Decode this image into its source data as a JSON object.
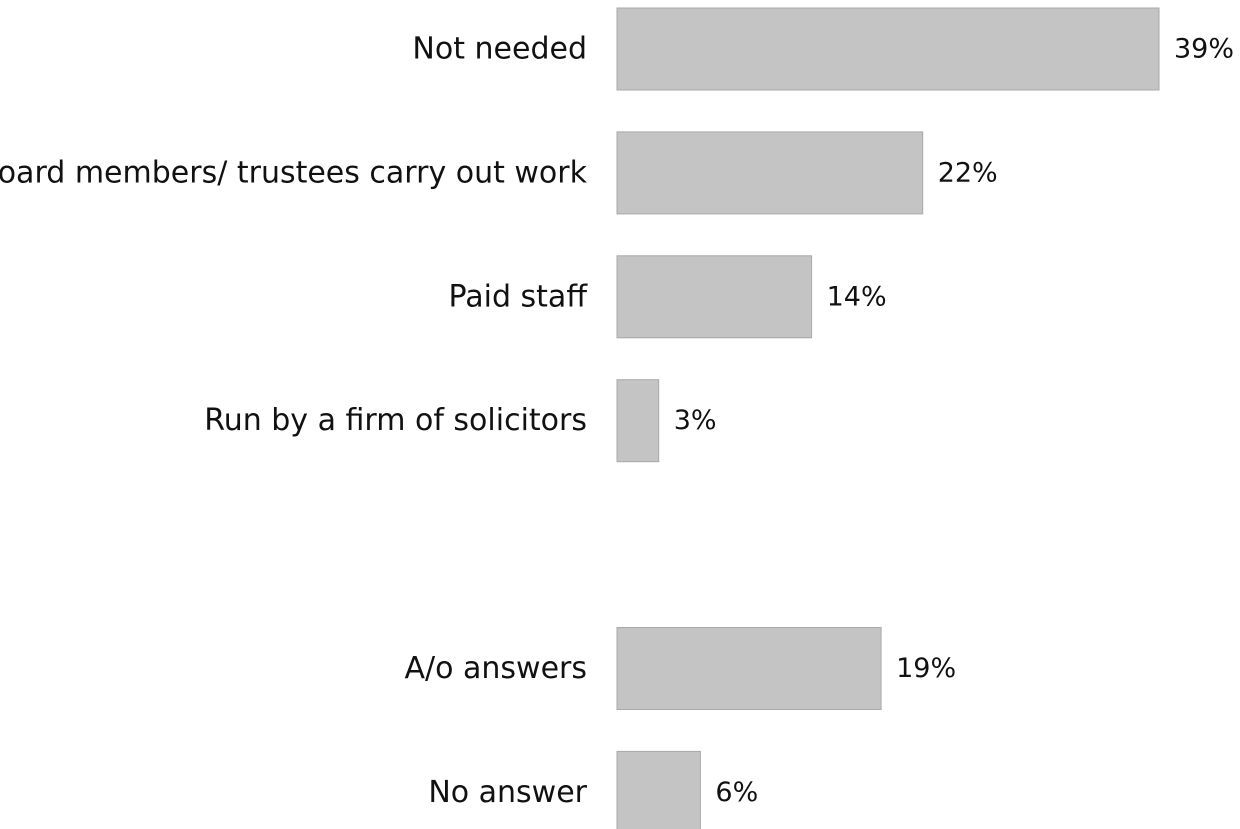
{
  "chart_data": {
    "type": "bar",
    "orientation": "horizontal",
    "categories": [
      "Not needed",
      "Board members/ trustees carry out work",
      "Paid staff",
      "Run by a firm of solicitors",
      "",
      "A/o answers",
      "No answer"
    ],
    "values": [
      39,
      22,
      14,
      3,
      null,
      19,
      6
    ],
    "data_labels": [
      "39%",
      "22%",
      "14%",
      "3%",
      "",
      "19%",
      "6%"
    ],
    "unit": "%",
    "xlim": [
      0,
      39
    ],
    "grid": false,
    "legend": "none",
    "bar_color": "#c4c4c4",
    "bar_edge_color": "#a9a9a9"
  }
}
